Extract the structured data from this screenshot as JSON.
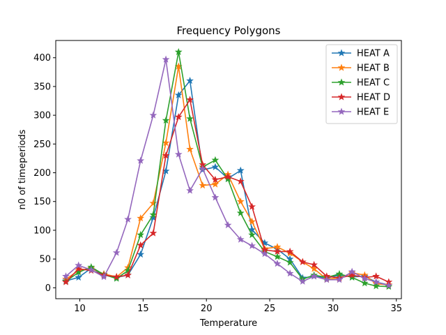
{
  "chart_data": {
    "type": "line",
    "title": "Frequency Polygons",
    "xlabel": "Temperature",
    "ylabel": "n0 of timeperiods",
    "xlim": [
      8.1,
      35.4
    ],
    "ylim": [
      -19,
      430
    ],
    "xticks": [
      10,
      15,
      20,
      25,
      30,
      35
    ],
    "yticks": [
      0,
      50,
      100,
      150,
      200,
      250,
      300,
      350,
      400
    ],
    "legend_position": "top-right",
    "marker": "star",
    "series": [
      {
        "name": "HEAT A",
        "color": "#1f77b4",
        "x": [
          8.9,
          9.9,
          10.9,
          11.9,
          12.9,
          13.8,
          14.8,
          15.8,
          16.8,
          17.8,
          18.7,
          19.7,
          20.7,
          21.7,
          22.7,
          23.6,
          24.6,
          25.6,
          26.6,
          27.6,
          28.5,
          29.5,
          30.5,
          31.5,
          32.5,
          33.4,
          34.4
        ],
        "y": [
          12,
          18,
          34,
          22,
          18,
          22,
          58,
          122,
          203,
          335,
          360,
          205,
          210,
          190,
          204,
          101,
          78,
          67,
          50,
          17,
          20,
          17,
          22,
          19,
          20,
          10,
          5
        ]
      },
      {
        "name": "HEAT B",
        "color": "#ff7f0e",
        "x": [
          8.9,
          9.9,
          10.9,
          11.9,
          12.9,
          13.8,
          14.8,
          15.8,
          16.8,
          17.8,
          18.7,
          19.7,
          20.7,
          21.7,
          22.7,
          23.6,
          24.6,
          25.6,
          26.6,
          27.6,
          28.5,
          29.5,
          30.5,
          31.5,
          32.5,
          33.4,
          34.4
        ],
        "y": [
          15,
          30,
          34,
          24,
          19,
          35,
          121,
          147,
          252,
          385,
          241,
          178,
          180,
          197,
          150,
          115,
          68,
          71,
          60,
          45,
          33,
          15,
          17,
          26,
          22,
          7,
          5
        ]
      },
      {
        "name": "HEAT C",
        "color": "#2ca02c",
        "x": [
          8.9,
          9.9,
          10.9,
          11.9,
          12.9,
          13.8,
          14.8,
          15.8,
          16.8,
          17.8,
          18.7,
          19.7,
          20.7,
          21.7,
          22.7,
          23.6,
          24.6,
          25.6,
          26.6,
          27.6,
          28.5,
          29.5,
          30.5,
          31.5,
          32.5,
          33.4,
          34.4
        ],
        "y": [
          11,
          27,
          36,
          23,
          16,
          30,
          92,
          127,
          291,
          410,
          294,
          210,
          222,
          189,
          130,
          92,
          63,
          54,
          44,
          15,
          22,
          18,
          24,
          18,
          8,
          3,
          2
        ]
      },
      {
        "name": "HEAT D",
        "color": "#d62728",
        "x": [
          8.9,
          9.9,
          10.9,
          11.9,
          12.9,
          13.8,
          14.8,
          15.8,
          16.8,
          17.8,
          18.7,
          19.7,
          20.7,
          21.7,
          22.7,
          23.6,
          24.6,
          25.6,
          26.6,
          27.6,
          28.5,
          29.5,
          30.5,
          31.5,
          32.5,
          33.4,
          34.4
        ],
        "y": [
          10,
          33,
          30,
          22,
          19,
          22,
          74,
          95,
          230,
          297,
          327,
          214,
          188,
          193,
          185,
          141,
          66,
          63,
          63,
          45,
          40,
          20,
          17,
          22,
          18,
          20,
          10
        ]
      },
      {
        "name": "HEAT E",
        "color": "#9467bd",
        "x": [
          8.9,
          9.9,
          10.9,
          11.9,
          12.9,
          13.8,
          14.8,
          15.8,
          16.8,
          17.8,
          18.7,
          19.7,
          20.7,
          21.7,
          22.7,
          23.6,
          24.6,
          25.6,
          26.6,
          27.6,
          28.5,
          29.5,
          30.5,
          31.5,
          32.5,
          33.4,
          34.4
        ],
        "y": [
          20,
          39,
          31,
          19,
          61,
          119,
          221,
          300,
          397,
          232,
          169,
          207,
          157,
          109,
          84,
          73,
          59,
          42,
          25,
          11,
          20,
          14,
          14,
          28,
          16,
          10,
          4
        ]
      }
    ]
  }
}
